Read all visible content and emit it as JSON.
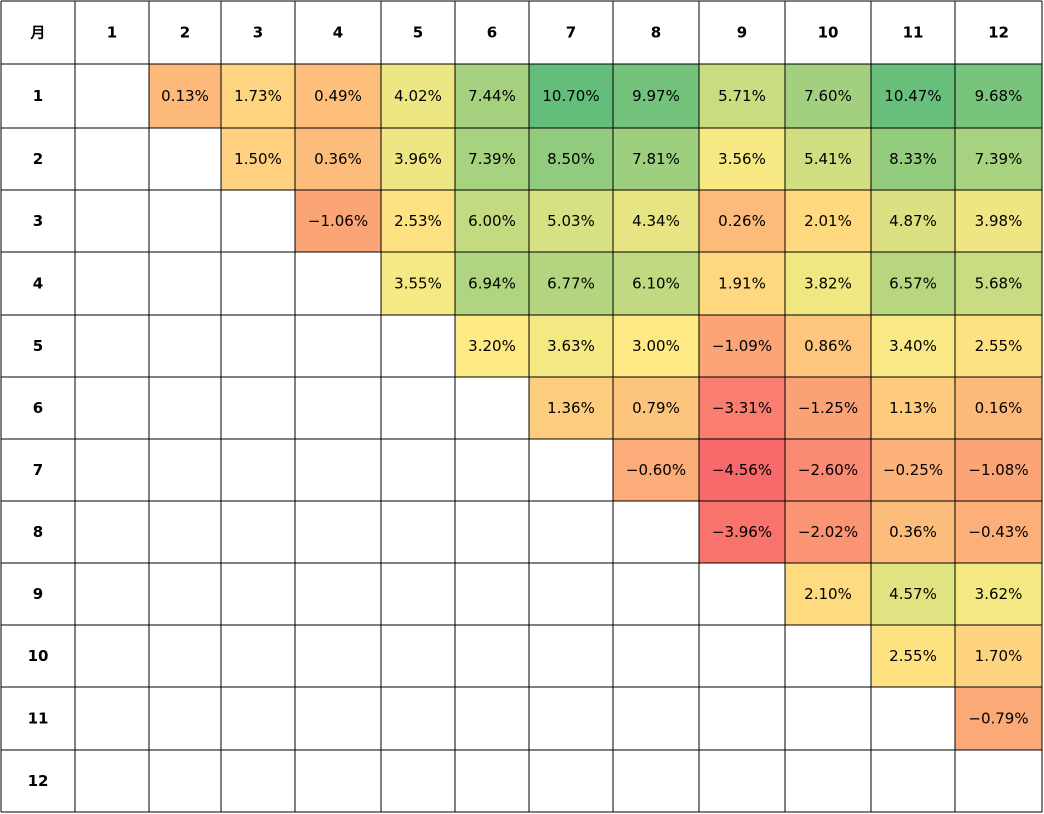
{
  "chart_data": {
    "type": "heatmap",
    "corner_label": "月",
    "col_labels": [
      "1",
      "2",
      "3",
      "4",
      "5",
      "6",
      "7",
      "8",
      "9",
      "10",
      "11",
      "12"
    ],
    "row_labels": [
      "1",
      "2",
      "3",
      "4",
      "5",
      "6",
      "7",
      "8",
      "9",
      "10",
      "11",
      "12"
    ],
    "values": [
      [
        null,
        0.13,
        1.73,
        0.49,
        4.02,
        7.44,
        10.7,
        9.97,
        5.71,
        7.6,
        10.47,
        9.68
      ],
      [
        null,
        null,
        1.5,
        0.36,
        3.96,
        7.39,
        8.5,
        7.81,
        3.56,
        5.41,
        8.33,
        7.39
      ],
      [
        null,
        null,
        null,
        -1.06,
        2.53,
        6.0,
        5.03,
        4.34,
        0.26,
        2.01,
        4.87,
        3.98
      ],
      [
        null,
        null,
        null,
        null,
        3.55,
        6.94,
        6.77,
        6.1,
        1.91,
        3.82,
        6.57,
        5.68
      ],
      [
        null,
        null,
        null,
        null,
        null,
        3.2,
        3.63,
        3.0,
        -1.09,
        0.86,
        3.4,
        2.55
      ],
      [
        null,
        null,
        null,
        null,
        null,
        null,
        1.36,
        0.79,
        -3.31,
        -1.25,
        1.13,
        0.16
      ],
      [
        null,
        null,
        null,
        null,
        null,
        null,
        null,
        -0.6,
        -4.56,
        -2.6,
        -0.25,
        -1.08
      ],
      [
        null,
        null,
        null,
        null,
        null,
        null,
        null,
        null,
        -3.96,
        -2.02,
        0.36,
        -0.43
      ],
      [
        null,
        null,
        null,
        null,
        null,
        null,
        null,
        null,
        null,
        2.1,
        4.57,
        3.62
      ],
      [
        null,
        null,
        null,
        null,
        null,
        null,
        null,
        null,
        null,
        null,
        2.55,
        1.7
      ],
      [
        null,
        null,
        null,
        null,
        null,
        null,
        null,
        null,
        null,
        null,
        null,
        -0.79
      ],
      [
        null,
        null,
        null,
        null,
        null,
        null,
        null,
        null,
        null,
        null,
        null,
        null
      ]
    ],
    "value_format": "percent_2dp",
    "color_scale": {
      "min_color": "#f8696b",
      "mid_color": "#ffeb84",
      "max_color": "#63be7b"
    }
  }
}
